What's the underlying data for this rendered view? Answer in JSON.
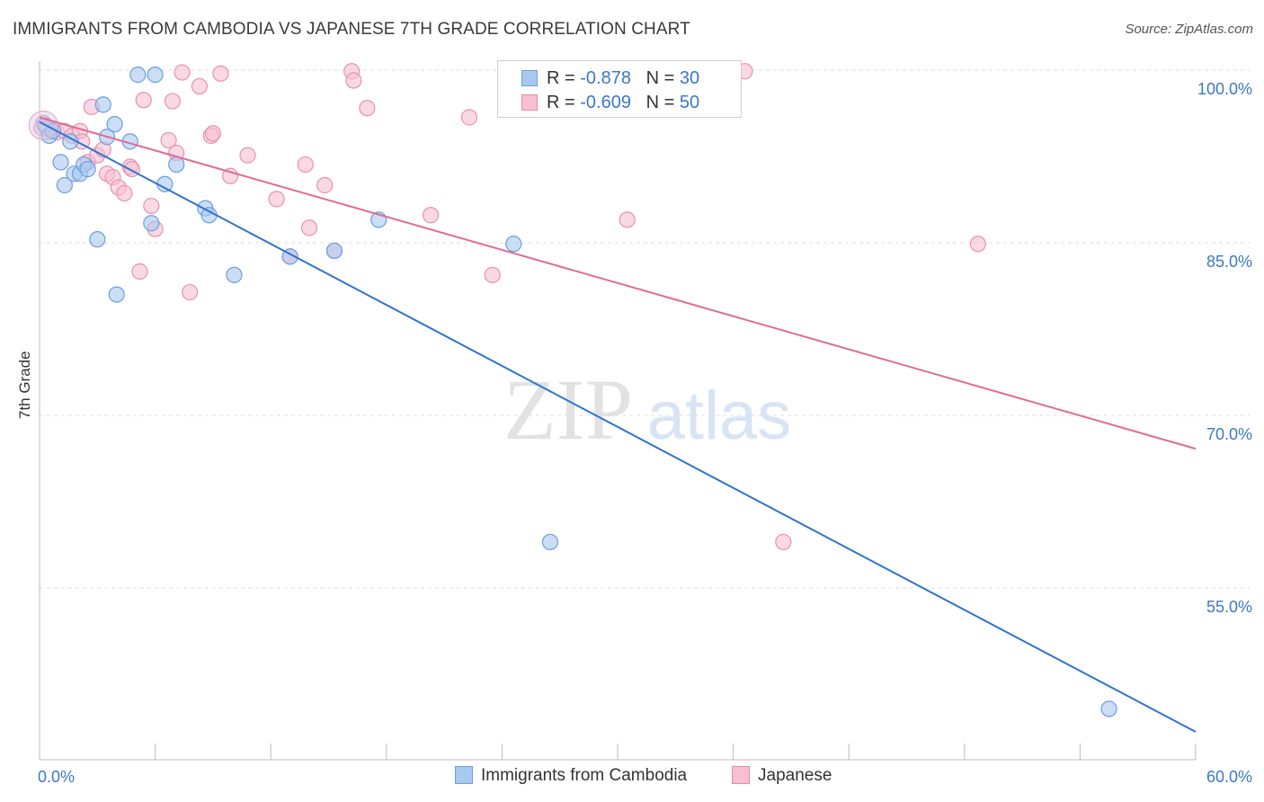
{
  "header": {
    "title": "IMMIGRANTS FROM CAMBODIA VS JAPANESE 7TH GRADE CORRELATION CHART",
    "source": "Source: ZipAtlas.com"
  },
  "watermark": {
    "zip": "ZIP",
    "atlas": "atlas"
  },
  "legend": {
    "rows": [
      {
        "r_label": "R =",
        "r_value": "-0.878",
        "n_label": "N =",
        "n_value": "30",
        "color": "#a9c8f0",
        "border": "#6f9fdd"
      },
      {
        "r_label": "R =",
        "r_value": "-0.609",
        "n_label": "N =",
        "n_value": "50",
        "color": "#f7bfd2",
        "border": "#e88aab"
      }
    ]
  },
  "bottom_legend": [
    {
      "label": "Immigrants from Cambodia",
      "color": "#a9c8f0",
      "border": "#6f9fdd"
    },
    {
      "label": "Japanese",
      "color": "#f7bfd2",
      "border": "#e88aab"
    }
  ],
  "chart_data": {
    "type": "scatter",
    "title": "IMMIGRANTS FROM CAMBODIA VS JAPANESE 7TH GRADE CORRELATION CHART",
    "xlabel": "",
    "ylabel": "7th Grade",
    "xlim": [
      0,
      60
    ],
    "ylim": [
      40,
      100
    ],
    "x_tick_labels": [
      "0.0%",
      "60.0%"
    ],
    "y_tick_labels": [
      "100.0%",
      "85.0%",
      "70.0%",
      "55.0%"
    ],
    "y_ticks": [
      100,
      85,
      70,
      55
    ],
    "grid": true,
    "legend_position": "top-center",
    "series": [
      {
        "name": "Immigrants from Cambodia",
        "color": "#6a9ee0",
        "fill": "#a9c8f0",
        "trend": {
          "x": [
            0,
            60
          ],
          "y": [
            95.5,
            42.5
          ],
          "color": "#2f73d0"
        },
        "points": [
          {
            "x": 0.3,
            "y": 95.2
          },
          {
            "x": 0.5,
            "y": 94.3
          },
          {
            "x": 0.7,
            "y": 94.7
          },
          {
            "x": 1.1,
            "y": 92.0
          },
          {
            "x": 1.3,
            "y": 90.0
          },
          {
            "x": 1.6,
            "y": 93.8
          },
          {
            "x": 1.8,
            "y": 91.0
          },
          {
            "x": 2.1,
            "y": 91.0
          },
          {
            "x": 2.3,
            "y": 91.8
          },
          {
            "x": 2.5,
            "y": 91.4
          },
          {
            "x": 3.0,
            "y": 85.3
          },
          {
            "x": 3.3,
            "y": 97.0
          },
          {
            "x": 3.5,
            "y": 94.2
          },
          {
            "x": 3.9,
            "y": 95.3
          },
          {
            "x": 4.0,
            "y": 80.5
          },
          {
            "x": 4.7,
            "y": 93.8
          },
          {
            "x": 5.1,
            "y": 99.6
          },
          {
            "x": 5.8,
            "y": 86.7
          },
          {
            "x": 6.0,
            "y": 99.6
          },
          {
            "x": 6.5,
            "y": 90.1
          },
          {
            "x": 7.1,
            "y": 91.8
          },
          {
            "x": 8.6,
            "y": 88.0
          },
          {
            "x": 8.8,
            "y": 87.4
          },
          {
            "x": 10.1,
            "y": 82.2
          },
          {
            "x": 13.0,
            "y": 83.8
          },
          {
            "x": 15.3,
            "y": 84.3
          },
          {
            "x": 17.6,
            "y": 87.0
          },
          {
            "x": 24.6,
            "y": 84.9
          },
          {
            "x": 26.5,
            "y": 59.0
          },
          {
            "x": 55.5,
            "y": 44.5
          }
        ]
      },
      {
        "name": "Japanese",
        "color": "#e890ae",
        "fill": "#f7bfd2",
        "trend": {
          "x": [
            0,
            60
          ],
          "y": [
            95.9,
            67.1
          ],
          "color": "#e06b96"
        },
        "points": [
          {
            "x": 0.2,
            "y": 95.4
          },
          {
            "x": 0.6,
            "y": 94.8
          },
          {
            "x": 0.9,
            "y": 94.6
          },
          {
            "x": 1.3,
            "y": 94.7
          },
          {
            "x": 1.7,
            "y": 94.3
          },
          {
            "x": 2.1,
            "y": 94.7
          },
          {
            "x": 2.2,
            "y": 93.8
          },
          {
            "x": 2.5,
            "y": 92.0
          },
          {
            "x": 2.7,
            "y": 96.8
          },
          {
            "x": 3.0,
            "y": 92.6
          },
          {
            "x": 3.3,
            "y": 93.1
          },
          {
            "x": 3.5,
            "y": 91.0
          },
          {
            "x": 3.8,
            "y": 90.7
          },
          {
            "x": 4.1,
            "y": 89.8
          },
          {
            "x": 4.4,
            "y": 89.3
          },
          {
            "x": 4.7,
            "y": 91.6
          },
          {
            "x": 4.8,
            "y": 91.4
          },
          {
            "x": 5.2,
            "y": 82.5
          },
          {
            "x": 5.4,
            "y": 97.4
          },
          {
            "x": 5.8,
            "y": 88.2
          },
          {
            "x": 6.0,
            "y": 86.2
          },
          {
            "x": 6.7,
            "y": 93.9
          },
          {
            "x": 6.9,
            "y": 97.3
          },
          {
            "x": 7.1,
            "y": 92.8
          },
          {
            "x": 7.4,
            "y": 99.8
          },
          {
            "x": 7.8,
            "y": 80.7
          },
          {
            "x": 8.3,
            "y": 98.6
          },
          {
            "x": 8.9,
            "y": 94.3
          },
          {
            "x": 9.0,
            "y": 94.5
          },
          {
            "x": 9.4,
            "y": 99.7
          },
          {
            "x": 9.9,
            "y": 90.8
          },
          {
            "x": 10.8,
            "y": 92.6
          },
          {
            "x": 12.3,
            "y": 88.8
          },
          {
            "x": 13.0,
            "y": 83.8
          },
          {
            "x": 13.8,
            "y": 91.8
          },
          {
            "x": 14.0,
            "y": 86.3
          },
          {
            "x": 14.8,
            "y": 90.0
          },
          {
            "x": 15.3,
            "y": 84.3
          },
          {
            "x": 16.2,
            "y": 99.9
          },
          {
            "x": 16.3,
            "y": 99.1
          },
          {
            "x": 17.0,
            "y": 96.7
          },
          {
            "x": 20.3,
            "y": 87.4
          },
          {
            "x": 22.3,
            "y": 95.9
          },
          {
            "x": 23.5,
            "y": 82.2
          },
          {
            "x": 30.5,
            "y": 87.0
          },
          {
            "x": 36.6,
            "y": 99.9
          },
          {
            "x": 38.6,
            "y": 59.0
          },
          {
            "x": 48.7,
            "y": 84.9
          },
          {
            "x": 0.1,
            "y": 95.0
          },
          {
            "x": 0.4,
            "y": 94.9
          }
        ]
      }
    ]
  }
}
